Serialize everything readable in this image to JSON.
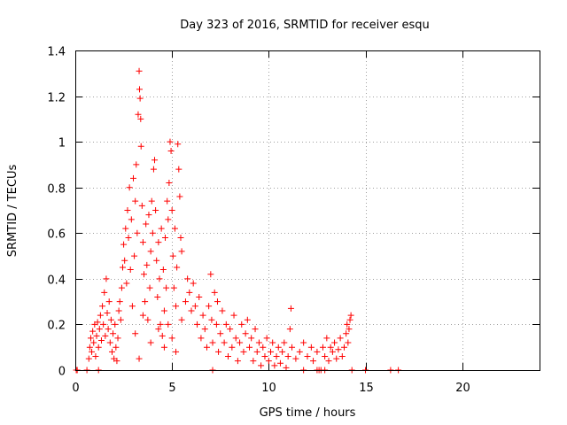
{
  "chart_data": {
    "type": "scatter",
    "title": "Day 323 of 2016, SRMTID for receiver esqu",
    "xlabel": "GPS time / hours",
    "ylabel": "SRMTID / TECUs",
    "xlim": [
      0,
      24
    ],
    "ylim": [
      0,
      1.4
    ],
    "xticks": [
      0,
      5,
      10,
      15,
      20
    ],
    "xtick_labels": [
      "0",
      "5",
      "10",
      "15",
      "20"
    ],
    "yticks": [
      0,
      0.2,
      0.4,
      0.6,
      0.8,
      1.0,
      1.2,
      1.4
    ],
    "ytick_labels": [
      "0",
      "0.2",
      "0.4",
      "0.6",
      "0.8",
      "1",
      "1.2",
      "1.4"
    ],
    "grid": true,
    "marker": "+",
    "color": "#ff0000",
    "series": [
      {
        "name": "SRMTID",
        "points": [
          [
            0.05,
            0.0
          ],
          [
            0.1,
            0.0
          ],
          [
            0.6,
            0.0
          ],
          [
            1.2,
            0.0
          ],
          [
            7.1,
            0.0
          ],
          [
            11.8,
            0.0
          ],
          [
            12.5,
            0.0
          ],
          [
            12.6,
            0.0
          ],
          [
            12.7,
            0.0
          ],
          [
            12.9,
            0.0
          ],
          [
            14.3,
            0.0
          ],
          [
            15.0,
            0.0
          ],
          [
            16.3,
            0.0
          ],
          [
            16.7,
            0.0
          ],
          [
            0.7,
            0.05
          ],
          [
            0.75,
            0.1
          ],
          [
            0.8,
            0.14
          ],
          [
            0.85,
            0.08
          ],
          [
            0.9,
            0.17
          ],
          [
            0.95,
            0.12
          ],
          [
            1.0,
            0.2
          ],
          [
            1.05,
            0.06
          ],
          [
            1.1,
            0.15
          ],
          [
            1.15,
            0.21
          ],
          [
            1.2,
            0.1
          ],
          [
            1.25,
            0.18
          ],
          [
            1.3,
            0.24
          ],
          [
            1.35,
            0.13
          ],
          [
            1.4,
            0.28
          ],
          [
            1.45,
            0.2
          ],
          [
            1.5,
            0.34
          ],
          [
            1.55,
            0.15
          ],
          [
            1.6,
            0.4
          ],
          [
            1.65,
            0.25
          ],
          [
            1.7,
            0.18
          ],
          [
            1.75,
            0.3
          ],
          [
            1.8,
            0.12
          ],
          [
            1.85,
            0.22
          ],
          [
            1.9,
            0.08
          ],
          [
            1.95,
            0.16
          ],
          [
            2.0,
            0.05
          ],
          [
            2.05,
            0.2
          ],
          [
            2.1,
            0.1
          ],
          [
            2.15,
            0.04
          ],
          [
            2.2,
            0.14
          ],
          [
            2.25,
            0.26
          ],
          [
            2.3,
            0.3
          ],
          [
            2.35,
            0.22
          ],
          [
            2.4,
            0.36
          ],
          [
            2.45,
            0.45
          ],
          [
            2.5,
            0.55
          ],
          [
            2.55,
            0.48
          ],
          [
            2.6,
            0.62
          ],
          [
            2.65,
            0.38
          ],
          [
            2.7,
            0.7
          ],
          [
            2.75,
            0.58
          ],
          [
            2.8,
            0.8
          ],
          [
            2.85,
            0.44
          ],
          [
            2.9,
            0.66
          ],
          [
            2.95,
            0.28
          ],
          [
            3.0,
            0.84
          ],
          [
            3.05,
            0.5
          ],
          [
            3.1,
            0.74
          ],
          [
            3.15,
            0.9
          ],
          [
            3.2,
            0.6
          ],
          [
            3.25,
            1.12
          ],
          [
            3.3,
            1.31
          ],
          [
            3.32,
            1.23
          ],
          [
            3.35,
            1.19
          ],
          [
            3.38,
            1.1
          ],
          [
            3.4,
            0.98
          ],
          [
            3.45,
            0.72
          ],
          [
            3.5,
            0.56
          ],
          [
            3.55,
            0.42
          ],
          [
            3.6,
            0.3
          ],
          [
            3.65,
            0.64
          ],
          [
            3.7,
            0.46
          ],
          [
            3.75,
            0.22
          ],
          [
            3.8,
            0.68
          ],
          [
            3.85,
            0.36
          ],
          [
            3.9,
            0.52
          ],
          [
            3.95,
            0.74
          ],
          [
            4.0,
            0.6
          ],
          [
            4.05,
            0.88
          ],
          [
            4.1,
            0.92
          ],
          [
            4.15,
            0.7
          ],
          [
            4.2,
            0.48
          ],
          [
            4.25,
            0.32
          ],
          [
            4.3,
            0.56
          ],
          [
            4.35,
            0.4
          ],
          [
            4.4,
            0.2
          ],
          [
            4.45,
            0.62
          ],
          [
            4.5,
            0.15
          ],
          [
            4.55,
            0.44
          ],
          [
            4.6,
            0.26
          ],
          [
            4.65,
            0.58
          ],
          [
            4.7,
            0.36
          ],
          [
            4.75,
            0.74
          ],
          [
            4.8,
            0.66
          ],
          [
            4.85,
            0.82
          ],
          [
            4.9,
            1.0
          ],
          [
            4.95,
            0.96
          ],
          [
            5.0,
            0.7
          ],
          [
            5.05,
            0.5
          ],
          [
            5.1,
            0.36
          ],
          [
            5.15,
            0.62
          ],
          [
            5.2,
            0.28
          ],
          [
            5.25,
            0.45
          ],
          [
            5.3,
            0.99
          ],
          [
            5.35,
            0.88
          ],
          [
            5.4,
            0.76
          ],
          [
            5.45,
            0.58
          ],
          [
            5.5,
            0.52
          ],
          [
            3.1,
            0.16
          ],
          [
            3.3,
            0.05
          ],
          [
            3.5,
            0.24
          ],
          [
            3.9,
            0.12
          ],
          [
            4.3,
            0.18
          ],
          [
            4.6,
            0.1
          ],
          [
            4.8,
            0.2
          ],
          [
            5.0,
            0.14
          ],
          [
            5.2,
            0.08
          ],
          [
            5.5,
            0.22
          ],
          [
            5.7,
            0.3
          ],
          [
            5.8,
            0.4
          ],
          [
            5.9,
            0.34
          ],
          [
            6.0,
            0.26
          ],
          [
            6.1,
            0.38
          ],
          [
            6.2,
            0.28
          ],
          [
            6.3,
            0.2
          ],
          [
            6.4,
            0.32
          ],
          [
            6.5,
            0.14
          ],
          [
            6.6,
            0.24
          ],
          [
            6.7,
            0.18
          ],
          [
            6.8,
            0.1
          ],
          [
            6.9,
            0.28
          ],
          [
            7.0,
            0.42
          ],
          [
            7.05,
            0.22
          ],
          [
            7.1,
            0.12
          ],
          [
            7.2,
            0.34
          ],
          [
            7.3,
            0.2
          ],
          [
            7.35,
            0.3
          ],
          [
            7.4,
            0.08
          ],
          [
            7.5,
            0.16
          ],
          [
            7.6,
            0.26
          ],
          [
            7.7,
            0.12
          ],
          [
            7.8,
            0.2
          ],
          [
            7.9,
            0.06
          ],
          [
            8.0,
            0.18
          ],
          [
            8.1,
            0.1
          ],
          [
            8.2,
            0.24
          ],
          [
            8.3,
            0.14
          ],
          [
            8.4,
            0.04
          ],
          [
            8.5,
            0.12
          ],
          [
            8.6,
            0.2
          ],
          [
            8.7,
            0.08
          ],
          [
            8.8,
            0.16
          ],
          [
            8.9,
            0.22
          ],
          [
            9.0,
            0.1
          ],
          [
            9.1,
            0.14
          ],
          [
            9.2,
            0.04
          ],
          [
            9.3,
            0.18
          ],
          [
            9.4,
            0.08
          ],
          [
            9.5,
            0.12
          ],
          [
            9.6,
            0.02
          ],
          [
            9.7,
            0.1
          ],
          [
            9.8,
            0.06
          ],
          [
            9.9,
            0.14
          ],
          [
            10.0,
            0.04
          ],
          [
            10.1,
            0.08
          ],
          [
            10.2,
            0.12
          ],
          [
            10.3,
            0.02
          ],
          [
            10.4,
            0.06
          ],
          [
            10.5,
            0.1
          ],
          [
            10.6,
            0.03
          ],
          [
            10.7,
            0.08
          ],
          [
            10.8,
            0.12
          ],
          [
            10.9,
            0.01
          ],
          [
            11.0,
            0.06
          ],
          [
            11.1,
            0.18
          ],
          [
            11.15,
            0.27
          ],
          [
            11.2,
            0.1
          ],
          [
            11.4,
            0.05
          ],
          [
            11.6,
            0.08
          ],
          [
            11.8,
            0.12
          ],
          [
            12.0,
            0.06
          ],
          [
            12.2,
            0.1
          ],
          [
            12.3,
            0.04
          ],
          [
            12.5,
            0.08
          ],
          [
            12.8,
            0.1
          ],
          [
            12.9,
            0.06
          ],
          [
            13.0,
            0.14
          ],
          [
            13.1,
            0.04
          ],
          [
            13.2,
            0.1
          ],
          [
            13.3,
            0.08
          ],
          [
            13.4,
            0.12
          ],
          [
            13.5,
            0.05
          ],
          [
            13.6,
            0.09
          ],
          [
            13.7,
            0.14
          ],
          [
            13.8,
            0.06
          ],
          [
            13.9,
            0.1
          ],
          [
            14.0,
            0.16
          ],
          [
            14.05,
            0.2
          ],
          [
            14.1,
            0.12
          ],
          [
            14.15,
            0.18
          ],
          [
            14.2,
            0.22
          ],
          [
            14.25,
            0.24
          ]
        ]
      }
    ]
  }
}
